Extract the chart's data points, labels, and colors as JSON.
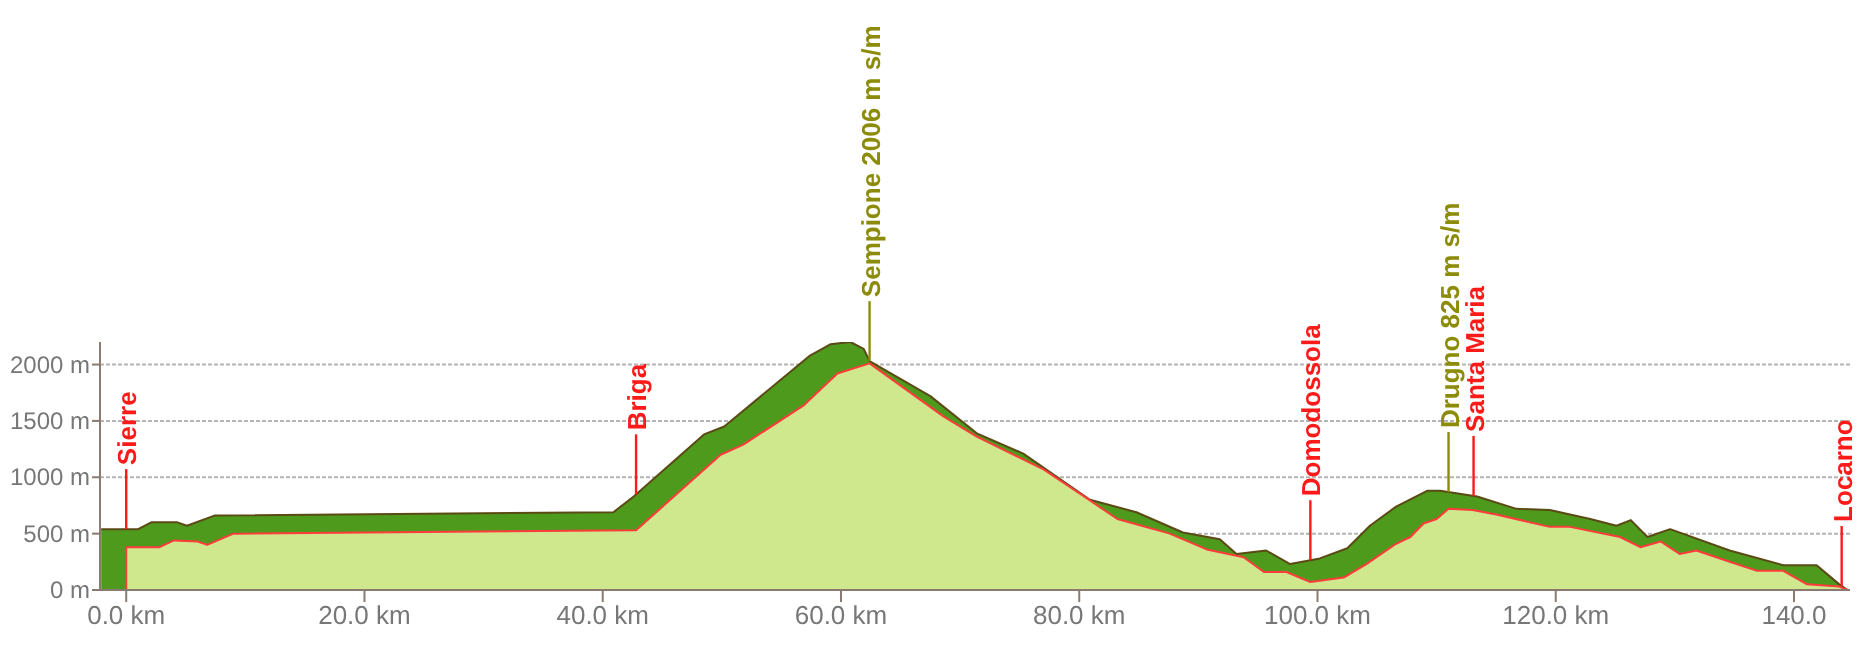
{
  "chart_data": {
    "type": "area",
    "xlim": [
      -2.2,
      144.7
    ],
    "xticks": [
      {
        "value": 0,
        "label": "0.0 km"
      },
      {
        "value": 20,
        "label": "20.0 km"
      },
      {
        "value": 40,
        "label": "40.0 km"
      },
      {
        "value": 60,
        "label": "60.0 km"
      },
      {
        "value": 80,
        "label": "80.0 km"
      },
      {
        "value": 100,
        "label": "100.0 km"
      },
      {
        "value": 120,
        "label": "120.0 km"
      },
      {
        "value": 140,
        "label": "140.0"
      }
    ],
    "ylim": [
      0,
      2200
    ],
    "yticks": [
      {
        "value": 0,
        "label": "0 m"
      },
      {
        "value": 500,
        "label": "500 m"
      },
      {
        "value": 1000,
        "label": "1000 m"
      },
      {
        "value": 1500,
        "label": "1500 m"
      },
      {
        "value": 2000,
        "label": "2000 m"
      }
    ],
    "grid": "y",
    "series": [
      {
        "color": "#4e9a1c",
        "x": [
          -2.1,
          1.0,
          2.1,
          4.3,
          5.1,
          7.4,
          40.9,
          42.6,
          48.5,
          50.2,
          57.4,
          59.1,
          60.8,
          61.9,
          62.4,
          67.5,
          71.4,
          75.3,
          80.9,
          84.8,
          88.7,
          91.8,
          93.2,
          95.7,
          97.7,
          100.2,
          102.5,
          104.4,
          106.6,
          109.2,
          110.3,
          113.4,
          116.7,
          119.5,
          122.9,
          125.1,
          126.3,
          127.7,
          129.6,
          134.6,
          139.1,
          141.9,
          143.8,
          144.5
        ],
        "values": [
          540,
          540,
          600,
          600,
          570,
          660,
          690,
          830,
          1380,
          1450,
          2080,
          2180,
          2200,
          2140,
          2030,
          1720,
          1390,
          1210,
          800,
          690,
          510,
          450,
          320,
          350,
          230,
          280,
          370,
          570,
          740,
          880,
          880,
          830,
          720,
          710,
          630,
          570,
          620,
          470,
          540,
          350,
          220,
          220,
          50,
          0
        ]
      },
      {
        "color": "#cfe88e",
        "x": [
          0,
          0,
          2.8,
          4.0,
          6.0,
          6.8,
          9.0,
          42.8,
          49.9,
          51.8,
          56.9,
          59.7,
          62.4,
          68.6,
          71.4,
          77.0,
          80.4,
          83.2,
          87.6,
          90.7,
          93.8,
          95.5,
          97.4,
          99.4,
          102.2,
          104.1,
          106.6,
          107.8,
          108.9,
          110.0,
          111.0,
          113.0,
          115.0,
          119.5,
          121.2,
          125.4,
          127.1,
          128.8,
          130.4,
          131.8,
          134.6,
          136.9,
          139.1,
          141.1,
          143.8,
          144.5
        ],
        "values": [
          0,
          380,
          380,
          440,
          430,
          400,
          500,
          530,
          1200,
          1290,
          1640,
          1920,
          2010,
          1540,
          1360,
          1070,
          830,
          630,
          500,
          360,
          290,
          160,
          160,
          70,
          110,
          230,
          410,
          470,
          590,
          630,
          720,
          710,
          670,
          560,
          560,
          470,
          380,
          430,
          320,
          350,
          250,
          170,
          170,
          50,
          30,
          0
        ]
      }
    ],
    "ref_lines": [
      {
        "axis": "x",
        "value": 0,
        "label": "Sierre",
        "color": "#ff1a1a"
      },
      {
        "axis": "x",
        "value": 42.8,
        "label": "Briga",
        "color": "#ff1a1a"
      },
      {
        "axis": "x",
        "value": 62.4,
        "label": "Sempione 2006 m s/m",
        "color": "#8c8c0a"
      },
      {
        "axis": "x",
        "value": 99.4,
        "label": "Domodossola",
        "color": "#ff1a1a"
      },
      {
        "axis": "x",
        "value": 111.0,
        "label": "Drugno 825 m s/m",
        "color": "#8c8c0a"
      },
      {
        "axis": "x",
        "value": 113.1,
        "label": "Santa Maria",
        "color": "#ff1a1a"
      },
      {
        "axis": "x",
        "value": 144.0,
        "label": "Locarno",
        "color": "#ff1a1a"
      }
    ]
  }
}
